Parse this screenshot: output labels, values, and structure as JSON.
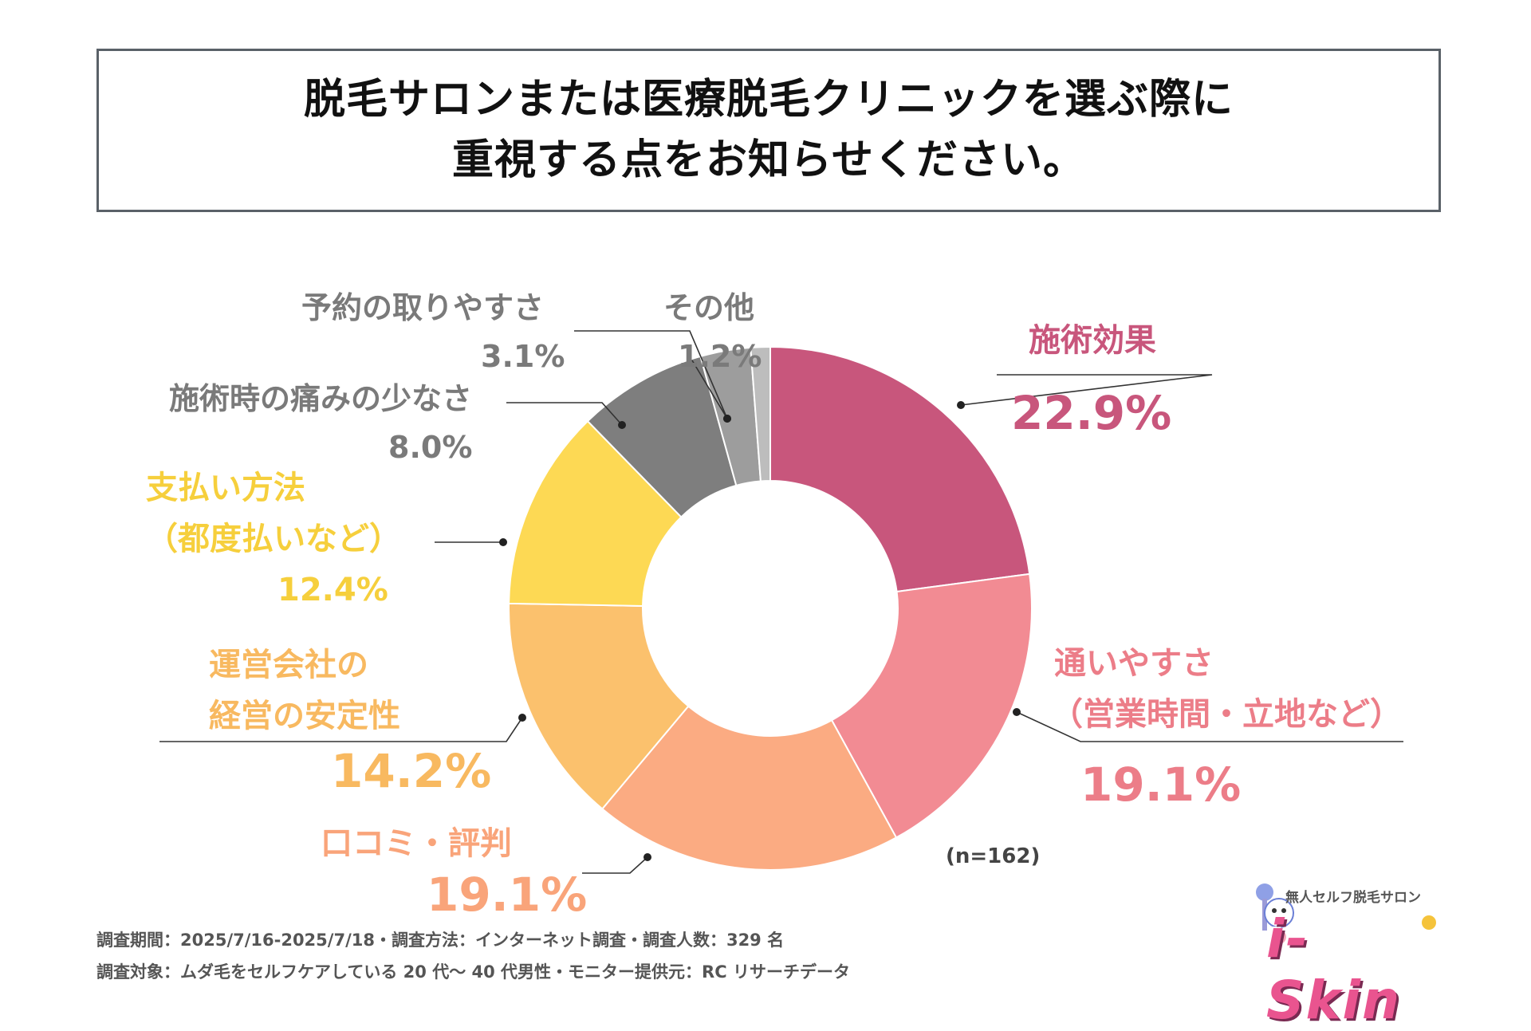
{
  "title": {
    "line1": "脱毛サロンまたは医療脱毛クリニックを選ぶ際に",
    "line2": "重視する点をお知らせください。"
  },
  "chart_data": {
    "type": "pie",
    "donut": true,
    "title": "脱毛サロンまたは医療脱毛クリニックを選ぶ際に重視する点をお知らせください。",
    "n_label": "(n=162)",
    "slices": [
      {
        "key": "effect",
        "name": "施術効果",
        "value": 22.9,
        "label": "22.9%",
        "color": "#c8567c",
        "text_color": "#c8567c"
      },
      {
        "key": "access",
        "name": "通いやすさ（営業時間・立地など）",
        "name_line1": "通いやすさ",
        "name_line2": "（営業時間・立地など）",
        "value": 19.1,
        "label": "19.1%",
        "color": "#f28b93",
        "text_color": "#ec7d88"
      },
      {
        "key": "reviews",
        "name": "口コミ・評判",
        "value": 19.1,
        "label": "19.1%",
        "color": "#fbab82",
        "text_color": "#f9a47a"
      },
      {
        "key": "company",
        "name": "運営会社の経営の安定性",
        "name_line1": "運営会社の",
        "name_line2": "経営の安定性",
        "value": 14.2,
        "label": "14.2%",
        "color": "#fbc16d",
        "text_color": "#f8b960"
      },
      {
        "key": "payment",
        "name": "支払い方法（都度払いなど）",
        "name_line1": "支払い方法",
        "name_line2": "（都度払いなど）",
        "value": 12.4,
        "label": "12.4%",
        "color": "#fdd954",
        "text_color": "#f6cf3c"
      },
      {
        "key": "pain",
        "name": "施術時の痛みの少なさ",
        "value": 8.0,
        "label": "8.0%",
        "color": "#7e7e7e",
        "text_color": "#7a7a7a"
      },
      {
        "key": "booking",
        "name": "予約の取りやすさ",
        "value": 3.1,
        "label": "3.1%",
        "color": "#9d9d9d",
        "text_color": "#7a7a7a"
      },
      {
        "key": "other",
        "name": "その他",
        "value": 1.2,
        "label": "1.2%",
        "color": "#bdbdbd",
        "text_color": "#7a7a7a"
      }
    ]
  },
  "footer": {
    "line1": "調査期間：2025/7/16-2025/7/18・調査方法：インターネット調査・調査人数：329 名",
    "line2": "調査対象：ムダ毛をセルフケアしている 20 代〜 40 代男性・モニター提供元：RC リサーチデータ"
  },
  "logo": {
    "tagline": "無人セルフ脱毛サロン",
    "brand": "i-Skin"
  }
}
